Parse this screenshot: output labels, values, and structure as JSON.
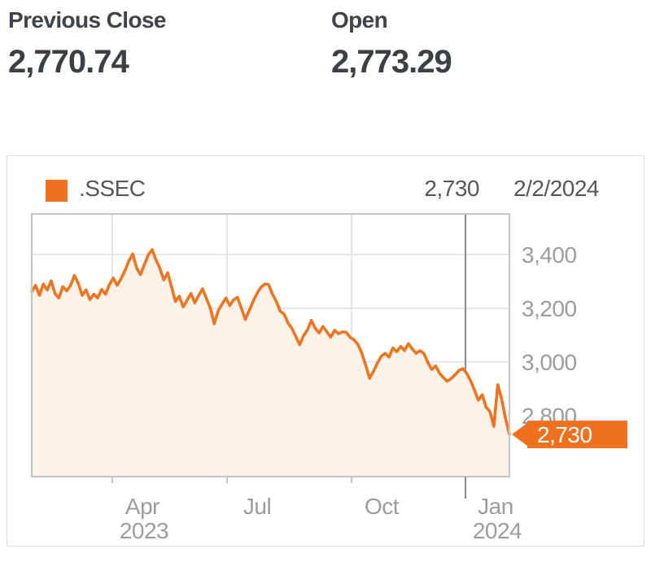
{
  "stats": [
    {
      "label": "Previous Close",
      "value": "2,770.74"
    },
    {
      "label": "Open",
      "value": "2,773.29"
    }
  ],
  "legend": {
    "symbol": ".SSEC",
    "value": "2,730",
    "date": "2/2/2024"
  },
  "colors": {
    "accent": "#F0701E",
    "line": "#EC7522",
    "fill": "#FCF2E8",
    "grid": "#E4E4E4",
    "plot_border": "#C5C6C6",
    "axis_text": "#9C9C9C",
    "tick": "#C5C6C6",
    "crosshair": "#8F8F8F",
    "callout_text": "#FFFFFF"
  },
  "chart_data": {
    "type": "area",
    "title": ".SSEC",
    "legend_position": "top-left",
    "grid": true,
    "ylim": [
      2573,
      3551
    ],
    "y_ticks": [
      {
        "v": 3400,
        "label": "3,400"
      },
      {
        "v": 3200,
        "label": "3,200"
      },
      {
        "v": 3000,
        "label": "3,000"
      },
      {
        "v": 2800,
        "label": "2,800"
      }
    ],
    "x_ticks": [
      {
        "t": 0.1686,
        "label": "Apr",
        "year": "2023"
      },
      {
        "t": 0.4089,
        "label": "Jul",
        "year": ""
      },
      {
        "t": 0.6695,
        "label": "Oct",
        "year": ""
      },
      {
        "t": 0.908,
        "label": "Jan",
        "year": "2024"
      }
    ],
    "crosshair_t": 0.908,
    "last": {
      "value": 2730,
      "label": "2,730",
      "date": "2/2/2024"
    },
    "values": [
      3262,
      3285,
      3248,
      3290,
      3268,
      3302,
      3255,
      3238,
      3280,
      3265,
      3285,
      3322,
      3292,
      3248,
      3268,
      3232,
      3252,
      3238,
      3270,
      3252,
      3288,
      3312,
      3285,
      3310,
      3340,
      3375,
      3402,
      3350,
      3325,
      3362,
      3398,
      3418,
      3380,
      3348,
      3305,
      3332,
      3280,
      3225,
      3245,
      3205,
      3230,
      3255,
      3220,
      3248,
      3272,
      3235,
      3200,
      3142,
      3190,
      3215,
      3238,
      3210,
      3232,
      3240,
      3200,
      3158,
      3192,
      3225,
      3255,
      3278,
      3290,
      3288,
      3252,
      3225,
      3189,
      3178,
      3145,
      3125,
      3095,
      3064,
      3098,
      3119,
      3155,
      3125,
      3108,
      3132,
      3112,
      3092,
      3118,
      3105,
      3112,
      3110,
      3092,
      3082,
      3065,
      3032,
      2988,
      2939,
      2965,
      2995,
      3021,
      3032,
      3018,
      3052,
      3038,
      3058,
      3042,
      3068,
      3048,
      3032,
      3042,
      3031,
      2998,
      2972,
      2985,
      2958,
      2942,
      2928,
      2938,
      2952,
      2968,
      2975,
      2958,
      2930,
      2896,
      2858,
      2878,
      2832,
      2815,
      2760,
      2915,
      2862,
      2790,
      2730
    ]
  }
}
